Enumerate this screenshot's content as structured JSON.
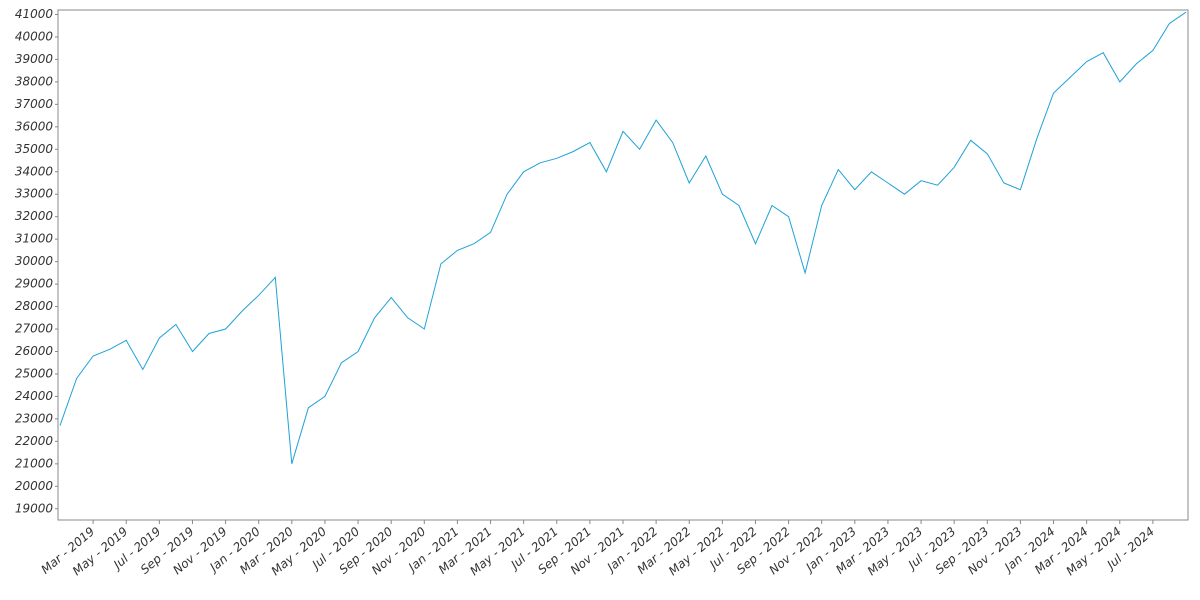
{
  "chart_data": {
    "type": "line",
    "x": [
      "2019-01",
      "2019-02",
      "2019-03",
      "2019-04",
      "2019-05",
      "2019-06",
      "2019-07",
      "2019-08",
      "2019-09",
      "2019-10",
      "2019-11",
      "2019-12",
      "2020-01",
      "2020-02",
      "2020-03",
      "2020-04",
      "2020-05",
      "2020-06",
      "2020-07",
      "2020-08",
      "2020-09",
      "2020-10",
      "2020-11",
      "2020-12",
      "2021-01",
      "2021-02",
      "2021-03",
      "2021-04",
      "2021-05",
      "2021-06",
      "2021-07",
      "2021-08",
      "2021-09",
      "2021-10",
      "2021-11",
      "2021-12",
      "2022-01",
      "2022-02",
      "2022-03",
      "2022-04",
      "2022-05",
      "2022-06",
      "2022-07",
      "2022-08",
      "2022-09",
      "2022-10",
      "2022-11",
      "2022-12",
      "2023-01",
      "2023-02",
      "2023-03",
      "2023-04",
      "2023-05",
      "2023-06",
      "2023-07",
      "2023-08",
      "2023-09",
      "2023-10",
      "2023-11",
      "2023-12",
      "2024-01",
      "2024-02",
      "2024-03",
      "2024-04",
      "2024-05",
      "2024-06",
      "2024-07",
      "2024-08",
      "2024-09"
    ],
    "series": [
      {
        "color": "#1fa2d8",
        "values": [
          22700,
          24800,
          25800,
          26100,
          26500,
          25200,
          26600,
          27200,
          26000,
          26800,
          27000,
          27800,
          28500,
          29300,
          21000,
          23500,
          24000,
          25500,
          26000,
          27500,
          28400,
          27500,
          27000,
          29900,
          30500,
          30800,
          31300,
          33000,
          34000,
          34400,
          34600,
          34900,
          35300,
          34000,
          35800,
          35000,
          36300,
          35300,
          33500,
          34700,
          33000,
          32500,
          30800,
          32500,
          32000,
          29500,
          32500,
          34100,
          33200,
          34000,
          33500,
          33000,
          33600,
          33400,
          34200,
          35400,
          34800,
          33500,
          33200,
          35500,
          37500,
          38200,
          38900,
          39300,
          38000,
          38800,
          39400,
          40600,
          41100
        ]
      }
    ],
    "xlim": [
      "2019-01",
      "2024-09"
    ],
    "xticks": [
      {
        "value": "2019-03",
        "label": "Mar - 2019"
      },
      {
        "value": "2019-05",
        "label": "May - 2019"
      },
      {
        "value": "2019-07",
        "label": "Jul - 2019"
      },
      {
        "value": "2019-09",
        "label": "Sep - 2019"
      },
      {
        "value": "2019-11",
        "label": "Nov - 2019"
      },
      {
        "value": "2020-01",
        "label": "Jan - 2020"
      },
      {
        "value": "2020-03",
        "label": "Mar - 2020"
      },
      {
        "value": "2020-05",
        "label": "May - 2020"
      },
      {
        "value": "2020-07",
        "label": "Jul - 2020"
      },
      {
        "value": "2020-09",
        "label": "Sep - 2020"
      },
      {
        "value": "2020-11",
        "label": "Nov - 2020"
      },
      {
        "value": "2021-01",
        "label": "Jan - 2021"
      },
      {
        "value": "2021-03",
        "label": "Mar - 2021"
      },
      {
        "value": "2021-05",
        "label": "May - 2021"
      },
      {
        "value": "2021-07",
        "label": "Jul - 2021"
      },
      {
        "value": "2021-09",
        "label": "Sep - 2021"
      },
      {
        "value": "2021-11",
        "label": "Nov - 2021"
      },
      {
        "value": "2022-01",
        "label": "Jan - 2022"
      },
      {
        "value": "2022-03",
        "label": "Mar - 2022"
      },
      {
        "value": "2022-05",
        "label": "May - 2022"
      },
      {
        "value": "2022-07",
        "label": "Jul - 2022"
      },
      {
        "value": "2022-09",
        "label": "Sep - 2022"
      },
      {
        "value": "2022-11",
        "label": "Nov - 2022"
      },
      {
        "value": "2023-01",
        "label": "Jan - 2023"
      },
      {
        "value": "2023-03",
        "label": "Mar - 2023"
      },
      {
        "value": "2023-05",
        "label": "May - 2023"
      },
      {
        "value": "2023-07",
        "label": "Jul - 2023"
      },
      {
        "value": "2023-09",
        "label": "Sep - 2023"
      },
      {
        "value": "2023-11",
        "label": "Nov - 2023"
      },
      {
        "value": "2024-01",
        "label": "Jan - 2024"
      },
      {
        "value": "2024-03",
        "label": "Mar - 2024"
      },
      {
        "value": "2024-05",
        "label": "May - 2024"
      },
      {
        "value": "2024-07",
        "label": "Jul - 2024"
      }
    ],
    "ylim": [
      18500,
      41200
    ],
    "yticks": [
      19000,
      20000,
      21000,
      22000,
      23000,
      24000,
      25000,
      26000,
      27000,
      28000,
      29000,
      30000,
      31000,
      32000,
      33000,
      34000,
      35000,
      36000,
      37000,
      38000,
      39000,
      40000,
      41000
    ],
    "grid": false
  }
}
